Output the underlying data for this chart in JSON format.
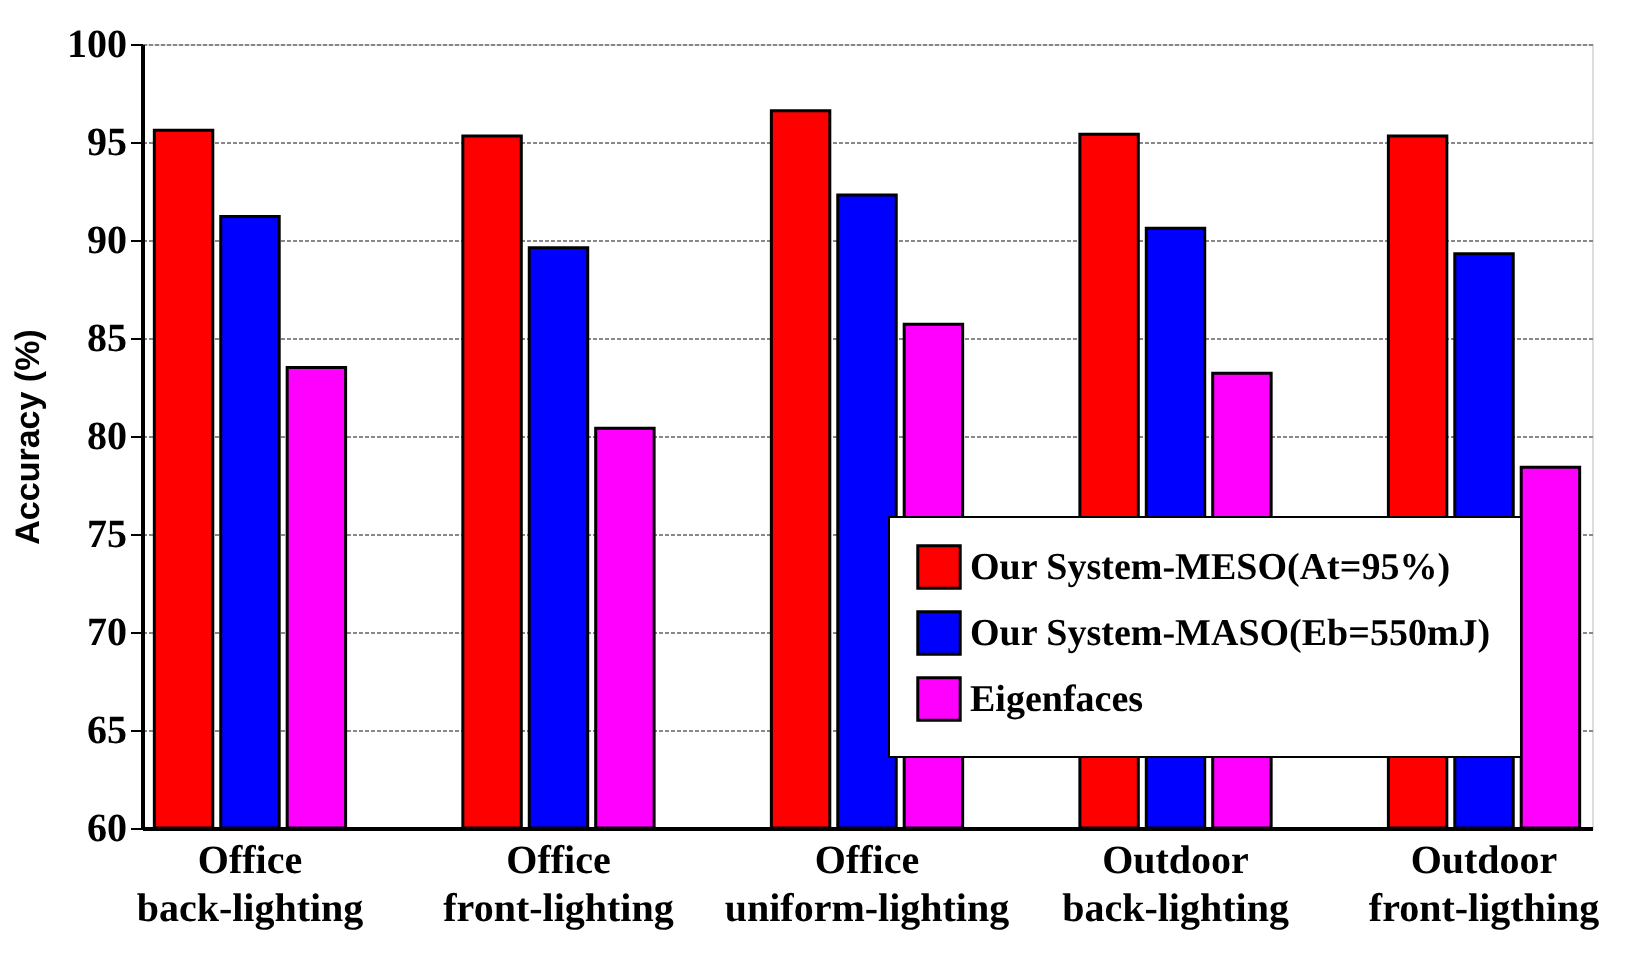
{
  "chart_data": {
    "type": "bar",
    "ylabel": "Accuracy (%)",
    "categories": [
      "Office\nback-lighting",
      "Office\nfront-lighting",
      "Office\nuniform-lighting",
      "Outdoor\nback-lighting",
      "Outdoor\nfront-ligthing"
    ],
    "series": [
      {
        "name": "Our System-MESO(At=95%)",
        "color": "#ff0000",
        "values": [
          95.6,
          95.3,
          96.6,
          95.4,
          95.3
        ]
      },
      {
        "name": "Our System-MASO(Eb=550mJ)",
        "color": "#0000ff",
        "values": [
          91.2,
          89.6,
          92.3,
          90.6,
          89.3
        ]
      },
      {
        "name": "Eigenfaces",
        "color": "#ff00ff",
        "values": [
          83.5,
          80.4,
          85.7,
          83.2,
          78.4
        ]
      }
    ],
    "ylim": [
      60,
      100
    ],
    "yticks": [
      60,
      65,
      70,
      75,
      80,
      85,
      90,
      95,
      100
    ],
    "grid": "y",
    "legend": "bottom right"
  }
}
